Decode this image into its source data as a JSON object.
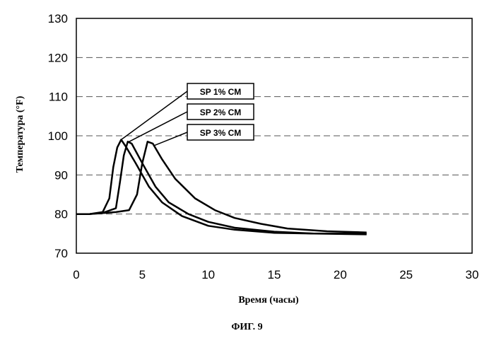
{
  "chart_data": {
    "type": "line",
    "xlabel": "Время (часы)",
    "ylabel": "Температура (°F)",
    "xlim": [
      0,
      30
    ],
    "ylim": [
      70,
      130
    ],
    "xticks": [
      0,
      5,
      10,
      15,
      20,
      25,
      30
    ],
    "yticks": [
      70,
      80,
      90,
      100,
      110,
      120,
      130
    ],
    "grid": "horizontal dashed",
    "series": [
      {
        "name": "SP 1% CM",
        "x": [
          0,
          0.3,
          1,
          2,
          2.5,
          2.8,
          3.1,
          3.4,
          3.8,
          4.5,
          5.5,
          6.5,
          8,
          10,
          12,
          15,
          18,
          22
        ],
        "y": [
          80,
          80,
          80,
          80.5,
          84,
          92,
          97,
          99,
          97,
          93,
          87,
          83,
          79.5,
          77,
          76,
          75.2,
          75,
          75
        ]
      },
      {
        "name": "SP 2% CM",
        "x": [
          0,
          0.3,
          1,
          2,
          3,
          3.3,
          3.6,
          3.9,
          4.2,
          5,
          6,
          7,
          8.5,
          10,
          12,
          15,
          18,
          22
        ],
        "y": [
          80,
          80,
          80,
          80.3,
          81.5,
          88,
          95,
          98.5,
          98,
          93,
          87,
          83,
          80,
          78,
          76.5,
          75.5,
          75,
          74.8
        ]
      },
      {
        "name": "SP 3% CM",
        "x": [
          0,
          0.3,
          1,
          3,
          4,
          4.6,
          5,
          5.4,
          5.8,
          6.5,
          7.5,
          9,
          10.5,
          12,
          14,
          16,
          19,
          22
        ],
        "y": [
          80,
          80,
          80,
          80.5,
          81,
          85,
          93,
          98.5,
          98,
          94,
          89,
          84,
          81,
          79,
          77.5,
          76.3,
          75.6,
          75.3
        ]
      }
    ],
    "legend_anchors": [
      {
        "series": "SP 1% CM",
        "x": 3.4,
        "y": 99
      },
      {
        "series": "SP 2% CM",
        "x": 4.0,
        "y": 98.5
      },
      {
        "series": "SP 3% CM",
        "x": 5.9,
        "y": 97.5
      }
    ]
  },
  "caption": "ФИГ. 9"
}
